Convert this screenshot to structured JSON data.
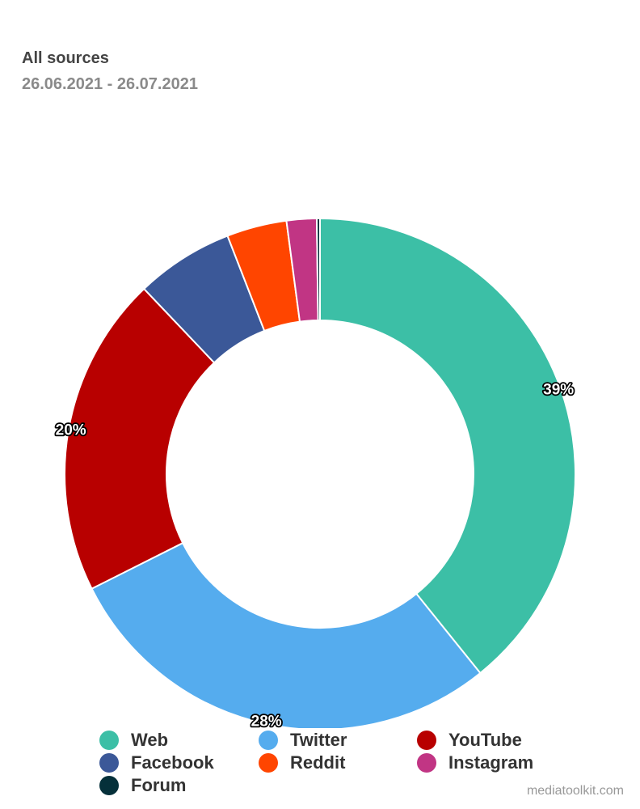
{
  "header": {
    "title": "All sources",
    "subtitle": "26.06.2021 - 26.07.2021"
  },
  "chart_data": {
    "type": "pie",
    "variant": "donut",
    "labels": [
      "Web",
      "Twitter",
      "YouTube",
      "Facebook",
      "Reddit",
      "Instagram",
      "Forum"
    ],
    "values": [
      39.2,
      28.4,
      20.3,
      6.2,
      3.8,
      1.9,
      0.2
    ],
    "colors": [
      "#3cbfa6",
      "#55acee",
      "#b80000",
      "#3b5898",
      "#ff4500",
      "#c13584",
      "#05303a"
    ],
    "data_labels": [
      "39%",
      "28%",
      "20%",
      "",
      "",
      "",
      ""
    ],
    "legend_position": "bottom"
  },
  "footer": {
    "credit": "mediatoolkit.com"
  }
}
